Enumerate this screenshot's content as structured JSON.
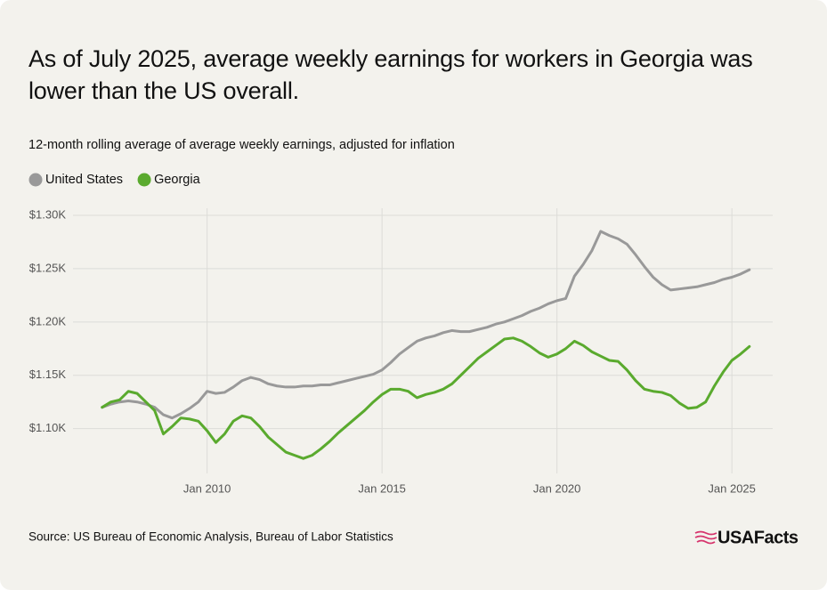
{
  "chart_data": {
    "type": "line",
    "title": "As of July 2025, average weekly earnings for workers in Georgia was lower than the US overall.",
    "subtitle": "12-month rolling average of average weekly earnings, adjusted for inflation",
    "source": "Source: US Bureau of Economic Analysis, Bureau of Labor Statistics",
    "brand": "USAFacts",
    "grid": true,
    "x": [
      "2007-01",
      "2007-04",
      "2007-07",
      "2007-10",
      "2008-01",
      "2008-04",
      "2008-07",
      "2008-10",
      "2009-01",
      "2009-04",
      "2009-07",
      "2009-10",
      "2010-01",
      "2010-04",
      "2010-07",
      "2010-10",
      "2011-01",
      "2011-04",
      "2011-07",
      "2011-10",
      "2012-01",
      "2012-04",
      "2012-07",
      "2012-10",
      "2013-01",
      "2013-04",
      "2013-07",
      "2013-10",
      "2014-01",
      "2014-04",
      "2014-07",
      "2014-10",
      "2015-01",
      "2015-04",
      "2015-07",
      "2015-10",
      "2016-01",
      "2016-04",
      "2016-07",
      "2016-10",
      "2017-01",
      "2017-04",
      "2017-07",
      "2017-10",
      "2018-01",
      "2018-04",
      "2018-07",
      "2018-10",
      "2019-01",
      "2019-04",
      "2019-07",
      "2019-10",
      "2020-01",
      "2020-04",
      "2020-07",
      "2020-10",
      "2021-01",
      "2021-04",
      "2021-07",
      "2021-10",
      "2022-01",
      "2022-04",
      "2022-07",
      "2022-10",
      "2023-01",
      "2023-04",
      "2023-07",
      "2023-10",
      "2024-01",
      "2024-04",
      "2024-07",
      "2024-10",
      "2025-01",
      "2025-04",
      "2025-07"
    ],
    "series": [
      {
        "name": "United States",
        "color": "#999999",
        "values": [
          1120,
          1123,
          1125,
          1126,
          1125,
          1123,
          1120,
          1113,
          1110,
          1114,
          1119,
          1125,
          1135,
          1133,
          1134,
          1139,
          1145,
          1148,
          1146,
          1142,
          1140,
          1139,
          1139,
          1140,
          1140,
          1141,
          1141,
          1143,
          1145,
          1147,
          1149,
          1151,
          1155,
          1162,
          1170,
          1176,
          1182,
          1185,
          1187,
          1190,
          1192,
          1191,
          1191,
          1193,
          1195,
          1198,
          1200,
          1203,
          1206,
          1210,
          1213,
          1217,
          1220,
          1222,
          1243,
          1254,
          1267,
          1285,
          1281,
          1278,
          1273,
          1263,
          1252,
          1242,
          1235,
          1230,
          1231,
          1232,
          1233,
          1235,
          1237,
          1240,
          1242,
          1245,
          1249
        ]
      },
      {
        "name": "Georgia",
        "color": "#5aaa2e",
        "values": [
          1120,
          1125,
          1127,
          1135,
          1133,
          1125,
          1117,
          1095,
          1102,
          1110,
          1109,
          1107,
          1098,
          1087,
          1095,
          1107,
          1112,
          1110,
          1102,
          1092,
          1085,
          1078,
          1075,
          1072,
          1075,
          1081,
          1088,
          1096,
          1103,
          1110,
          1117,
          1125,
          1132,
          1137,
          1137,
          1135,
          1129,
          1132,
          1134,
          1137,
          1142,
          1150,
          1158,
          1166,
          1172,
          1178,
          1184,
          1185,
          1182,
          1177,
          1171,
          1167,
          1170,
          1175,
          1182,
          1178,
          1172,
          1168,
          1164,
          1163,
          1155,
          1145,
          1137,
          1135,
          1134,
          1131,
          1124,
          1119,
          1120,
          1125,
          1140,
          1153,
          1164,
          1170,
          1177
        ]
      }
    ],
    "xlim": [
      "2006-03",
      "2026-03"
    ],
    "xticks": [
      {
        "value": "2010-01",
        "label": "Jan 2010"
      },
      {
        "value": "2015-01",
        "label": "Jan 2015"
      },
      {
        "value": "2020-01",
        "label": "Jan 2020"
      },
      {
        "value": "2025-01",
        "label": "Jan 2025"
      }
    ],
    "ylim": [
      1058,
      1300
    ],
    "yticks": [
      {
        "value": 1100,
        "label": "$1.10K"
      },
      {
        "value": 1150,
        "label": "$1.15K"
      },
      {
        "value": 1200,
        "label": "$1.20K"
      },
      {
        "value": 1250,
        "label": "$1.25K"
      },
      {
        "value": 1300,
        "label": "$1.30K"
      }
    ]
  }
}
